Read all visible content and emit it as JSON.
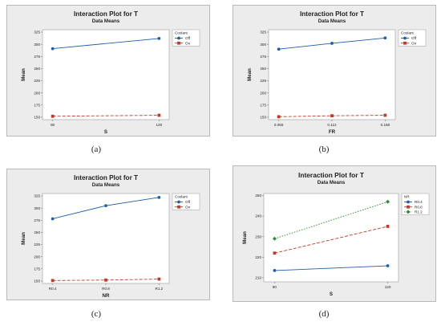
{
  "chart_data": [
    {
      "type": "line",
      "title": "Interaction Plot for T",
      "subtitle": "Data Means",
      "xlabel": "S",
      "ylabel": "Mean",
      "categories": [
        "80",
        "120"
      ],
      "ylim": [
        145,
        330
      ],
      "yticks": [
        150,
        175,
        200,
        225,
        250,
        275,
        300,
        325
      ],
      "legend_title": "Coolant",
      "legend_position": "top-right",
      "series": [
        {
          "name": "Off",
          "values": [
            291,
            312
          ],
          "color": "#1f5fa8",
          "marker": "circle",
          "dash": "solid"
        },
        {
          "name": "On",
          "values": [
            152,
            154
          ],
          "color": "#c0392b",
          "marker": "square",
          "dash": "dashed"
        }
      ]
    },
    {
      "type": "line",
      "title": "Interaction Plot for T",
      "subtitle": "Data Means",
      "xlabel": "FR",
      "ylabel": "Mean",
      "categories": [
        "0.056",
        "0.112",
        "0.168"
      ],
      "ylim": [
        145,
        330
      ],
      "yticks": [
        150,
        175,
        200,
        225,
        250,
        275,
        300,
        325
      ],
      "legend_title": "Coolant",
      "legend_position": "top-right",
      "series": [
        {
          "name": "Off",
          "values": [
            290,
            302,
            313
          ],
          "color": "#1f5fa8",
          "marker": "circle",
          "dash": "solid"
        },
        {
          "name": "On",
          "values": [
            151,
            153,
            154
          ],
          "color": "#c0392b",
          "marker": "square",
          "dash": "dashed"
        }
      ]
    },
    {
      "type": "line",
      "title": "Interaction Plot for T",
      "subtitle": "Data Means",
      "xlabel": "NR",
      "ylabel": "Mean",
      "categories": [
        "R0.4",
        "R0.8",
        "R1.2"
      ],
      "ylim": [
        145,
        330
      ],
      "yticks": [
        150,
        175,
        200,
        225,
        250,
        275,
        300,
        325
      ],
      "legend_title": "Coolant",
      "legend_position": "top-right",
      "series": [
        {
          "name": "Off",
          "values": [
            278,
            305,
            322
          ],
          "color": "#1f5fa8",
          "marker": "circle",
          "dash": "solid"
        },
        {
          "name": "On",
          "values": [
            151,
            152,
            154
          ],
          "color": "#c0392b",
          "marker": "square",
          "dash": "dashed"
        }
      ]
    },
    {
      "type": "line",
      "title": "Interaction Plot for T",
      "subtitle": "Data Means",
      "xlabel": "S",
      "ylabel": "Mean",
      "categories": [
        "80",
        "120"
      ],
      "ylim": [
        208,
        251
      ],
      "yticks": [
        210,
        220,
        230,
        240,
        250
      ],
      "legend_title": "NR",
      "legend_position": "top-right",
      "series": [
        {
          "name": "R0.4",
          "values": [
            213.5,
            215.8
          ],
          "color": "#1f5fa8",
          "marker": "circle",
          "dash": "solid"
        },
        {
          "name": "R0.8",
          "values": [
            222,
            235
          ],
          "color": "#c0392b",
          "marker": "square",
          "dash": "dashed"
        },
        {
          "name": "R1.2",
          "values": [
            229,
            247
          ],
          "color": "#2e8b3a",
          "marker": "diamond",
          "dash": "dotted"
        }
      ]
    }
  ],
  "captions": [
    "(a)",
    "(b)",
    "(c)",
    "(d)"
  ]
}
